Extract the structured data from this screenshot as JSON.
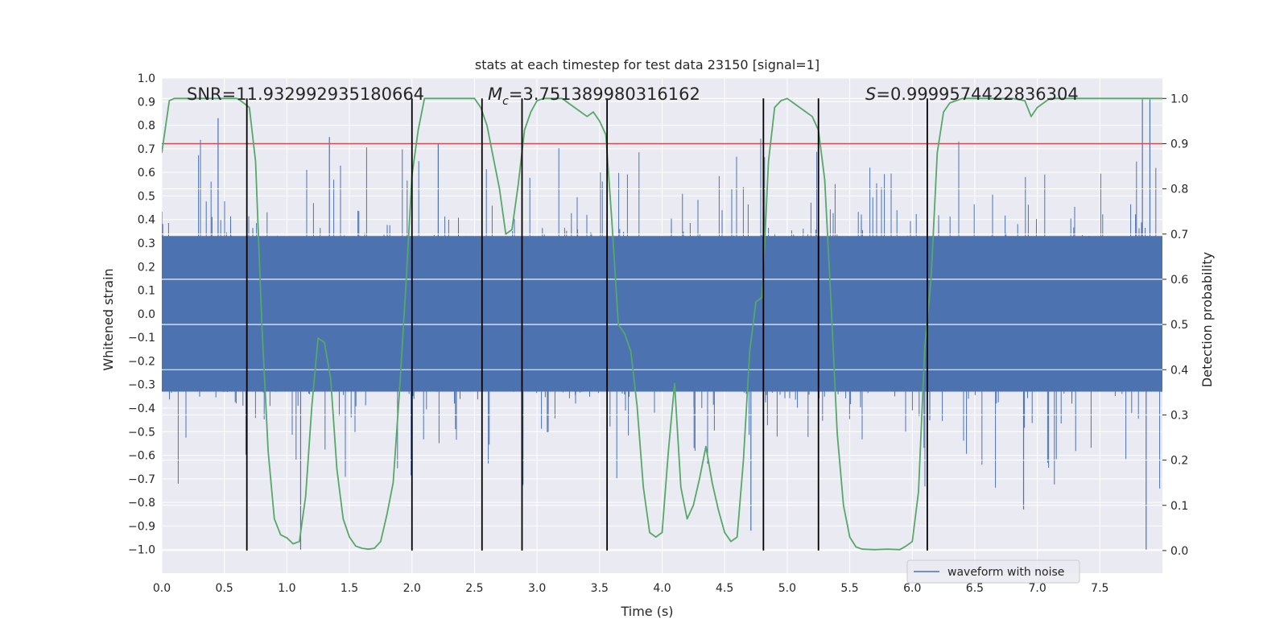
{
  "chart_data": {
    "type": "line",
    "title": "stats at each timestep for test data 23150 [signal=1]",
    "xlabel": "Time (s)",
    "ylabel": "Whitened strain",
    "y2label": "Detection probability",
    "xlim": [
      0.0,
      8.0
    ],
    "ylim": [
      -1.1,
      1.0
    ],
    "y2lim": [
      -0.05,
      1.045
    ],
    "x_ticks": [
      0.0,
      0.5,
      1.0,
      1.5,
      2.0,
      2.5,
      3.0,
      3.5,
      4.0,
      4.5,
      5.0,
      5.5,
      6.0,
      6.5,
      7.0,
      7.5
    ],
    "x_tick_labels": [
      "0.0",
      "0.5",
      "1.0",
      "1.5",
      "2.0",
      "2.5",
      "3.0",
      "3.5",
      "4.0",
      "4.5",
      "5.0",
      "5.5",
      "6.0",
      "6.5",
      "7.0",
      "7.5"
    ],
    "y_ticks": [
      1.0,
      0.9,
      0.8,
      0.7,
      0.6,
      0.5,
      0.4,
      0.3,
      0.2,
      0.1,
      0.0,
      -0.1,
      -0.2,
      -0.3,
      -0.4,
      -0.5,
      -0.6,
      -0.7,
      -0.8,
      -0.9,
      -1.0
    ],
    "y_tick_labels": [
      "1.0",
      "0.9",
      "0.8",
      "0.7",
      "0.6",
      "0.5",
      "0.4",
      "0.3",
      "0.2",
      "0.1",
      "0.0",
      "−0.1",
      "−0.2",
      "−0.3",
      "−0.4",
      "−0.5",
      "−0.6",
      "−0.7",
      "−0.8",
      "−0.9",
      "−1.0"
    ],
    "y2_ticks": [
      1.0,
      0.9,
      0.8,
      0.7,
      0.6,
      0.5,
      0.4,
      0.3,
      0.2,
      0.1,
      0.0
    ],
    "y2_tick_labels": [
      "1.0",
      "0.9",
      "0.8",
      "0.7",
      "0.6",
      "0.5",
      "0.4",
      "0.3",
      "0.2",
      "0.1",
      "0.0"
    ],
    "annotations": {
      "snr": "SNR=11.932992935180664",
      "mc_symbol": "M",
      "mc_subscript": "c",
      "mc_value": "=3.751389980316162",
      "s_symbol": "S",
      "s_value": "=0.9999574422836304"
    },
    "threshold": {
      "value": 0.9,
      "axis": "y2",
      "color": "#c44e52"
    },
    "vertical_lines": [
      0.68,
      2.0,
      2.56,
      2.88,
      3.56,
      4.81,
      5.25,
      6.12
    ],
    "vertical_line_range_y2": [
      0.0,
      1.0
    ],
    "series": [
      {
        "name": "waveform with noise",
        "axis": "y",
        "color": "#4c72b0",
        "kind": "noisy-waveform",
        "sample_rate_hz": 2048,
        "core_amplitude": 0.33,
        "extremes": [
          {
            "x": 0.45,
            "y": 0.83
          },
          {
            "x": 1.11,
            "y": -1.0
          },
          {
            "x": 1.34,
            "y": 0.75
          },
          {
            "x": 2.21,
            "y": 0.72
          },
          {
            "x": 4.71,
            "y": -0.92
          },
          {
            "x": 6.89,
            "y": -0.83
          },
          {
            "x": 7.84,
            "y": 0.91
          },
          {
            "x": 7.87,
            "y": -1.0
          },
          {
            "x": 7.9,
            "y": 0.91
          }
        ]
      },
      {
        "name": "detection probability",
        "axis": "y2",
        "color": "#55a868",
        "x": [
          0.0,
          0.06,
          0.1,
          0.2,
          0.3,
          0.4,
          0.5,
          0.6,
          0.63,
          0.7,
          0.75,
          0.8,
          0.85,
          0.9,
          0.95,
          1.0,
          1.05,
          1.1,
          1.15,
          1.2,
          1.25,
          1.3,
          1.35,
          1.4,
          1.45,
          1.5,
          1.55,
          1.6,
          1.65,
          1.7,
          1.75,
          1.8,
          1.85,
          1.9,
          1.95,
          2.0,
          2.05,
          2.1,
          2.15,
          2.2,
          2.3,
          2.4,
          2.5,
          2.55,
          2.6,
          2.65,
          2.7,
          2.75,
          2.8,
          2.85,
          2.9,
          2.95,
          3.0,
          3.05,
          3.1,
          3.2,
          3.3,
          3.4,
          3.45,
          3.5,
          3.55,
          3.6,
          3.65,
          3.7,
          3.75,
          3.8,
          3.85,
          3.9,
          3.95,
          4.0,
          4.05,
          4.1,
          4.15,
          4.2,
          4.25,
          4.3,
          4.35,
          4.4,
          4.45,
          4.5,
          4.55,
          4.6,
          4.65,
          4.7,
          4.75,
          4.8,
          4.85,
          4.9,
          4.95,
          5.0,
          5.05,
          5.1,
          5.15,
          5.2,
          5.25,
          5.3,
          5.35,
          5.4,
          5.45,
          5.5,
          5.55,
          5.6,
          5.7,
          5.8,
          5.9,
          5.95,
          6.0,
          6.05,
          6.1,
          6.15,
          6.2,
          6.25,
          6.3,
          6.4,
          6.5,
          6.6,
          6.7,
          6.8,
          6.9,
          6.95,
          7.0,
          7.1,
          7.2,
          7.3,
          7.4,
          7.5,
          7.6,
          7.7,
          7.8,
          7.9,
          8.0
        ],
        "values": [
          0.88,
          0.995,
          1.0,
          1.0,
          1.0,
          1.0,
          1.0,
          1.0,
          0.995,
          0.98,
          0.86,
          0.5,
          0.22,
          0.07,
          0.035,
          0.028,
          0.015,
          0.02,
          0.12,
          0.32,
          0.47,
          0.46,
          0.38,
          0.18,
          0.07,
          0.03,
          0.01,
          0.005,
          0.003,
          0.005,
          0.02,
          0.08,
          0.15,
          0.35,
          0.58,
          0.83,
          0.93,
          1.0,
          1.0,
          1.0,
          1.0,
          1.0,
          1.0,
          0.98,
          0.94,
          0.87,
          0.8,
          0.7,
          0.71,
          0.81,
          0.93,
          0.97,
          0.995,
          1.0,
          1.0,
          1.0,
          0.98,
          0.96,
          0.97,
          0.95,
          0.92,
          0.72,
          0.5,
          0.48,
          0.44,
          0.32,
          0.14,
          0.04,
          0.03,
          0.04,
          0.22,
          0.37,
          0.14,
          0.07,
          0.1,
          0.16,
          0.23,
          0.15,
          0.09,
          0.04,
          0.02,
          0.03,
          0.2,
          0.44,
          0.55,
          0.56,
          0.86,
          0.98,
          0.995,
          1.0,
          0.99,
          0.98,
          0.97,
          0.96,
          0.93,
          0.82,
          0.55,
          0.26,
          0.1,
          0.03,
          0.008,
          0.003,
          0.002,
          0.003,
          0.002,
          0.01,
          0.02,
          0.13,
          0.45,
          0.6,
          0.88,
          0.97,
          0.99,
          1.0,
          1.0,
          1.0,
          1.0,
          1.0,
          0.995,
          0.96,
          0.98,
          1.0,
          1.0,
          1.0,
          1.0,
          1.0,
          1.0,
          1.0,
          1.0,
          1.0,
          1.0
        ]
      }
    ],
    "legend": {
      "label": "waveform with noise",
      "placement": "lower-right",
      "color": "#4c72b0"
    }
  }
}
